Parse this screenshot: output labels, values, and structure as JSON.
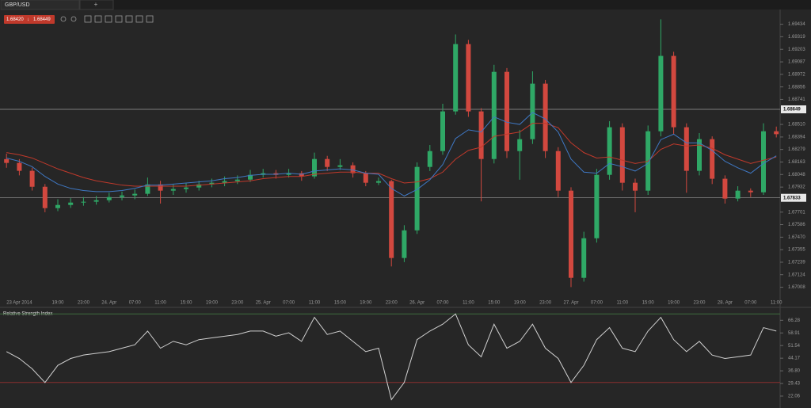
{
  "symbol": "GBP/USD",
  "quote": {
    "bid": "1.68420",
    "ask": "1.68449"
  },
  "chart_data": [
    {
      "type": "candlestick",
      "categories": [
        null,
        "23 Apr 2014",
        null,
        null,
        "19:00",
        null,
        "23:00",
        null,
        "24. Apr",
        null,
        "07:00",
        null,
        "11:00",
        null,
        "15:00",
        null,
        "19:00",
        null,
        "23:00",
        null,
        "25. Apr",
        null,
        "07:00",
        null,
        "11:00",
        null,
        "15:00",
        null,
        "19:00",
        null,
        "23:00",
        null,
        "26. Apr",
        null,
        "07:00",
        null,
        "11:00",
        null,
        "15:00",
        null,
        "19:00",
        null,
        "23:00",
        null,
        "27. Apr",
        null,
        "07:00",
        null,
        "11:00",
        null,
        "15:00",
        null,
        "19:00",
        null,
        "23:00",
        null,
        "28. Apr",
        null,
        "07:00",
        null,
        "11:00"
      ],
      "open": [
        1.6819,
        1.68155,
        1.68082,
        1.67935,
        1.67738,
        1.67767,
        1.67789,
        1.67797,
        1.67811,
        1.6784,
        1.67855,
        1.6787,
        1.67957,
        1.67899,
        1.67914,
        1.67928,
        1.67957,
        1.67972,
        1.67987,
        1.68001,
        1.68045,
        1.6806,
        1.68045,
        1.6806,
        1.68031,
        1.68191,
        1.68118,
        1.68133,
        1.6806,
        1.67972,
        1.67987,
        1.67278,
        1.67533,
        1.68118,
        1.68264,
        1.6863,
        1.69251,
        1.6863,
        1.68191,
        1.68995,
        1.68264,
        1.68374,
        1.68886,
        1.68264,
        1.67899,
        1.67095,
        1.6746,
        1.68045,
        1.68484,
        1.67972,
        1.67899,
        1.68447,
        1.69142,
        1.68484,
        1.68082,
        1.68374,
        1.68009,
        1.67826,
        1.67899,
        1.67884,
        1.68447
      ],
      "high": [
        1.6824,
        1.6819,
        1.6811,
        1.6796,
        1.6782,
        1.6783,
        1.6784,
        1.6785,
        1.6788,
        1.6789,
        1.6791,
        1.6802,
        1.6799,
        1.6796,
        1.6797,
        1.6799,
        1.6801,
        1.6803,
        1.6804,
        1.6809,
        1.681,
        1.6809,
        1.681,
        1.6808,
        1.6825,
        1.6822,
        1.6819,
        1.6816,
        1.6808,
        1.6802,
        1.68,
        1.6758,
        1.6816,
        1.6832,
        1.687,
        1.6934,
        1.6929,
        1.6866,
        1.6906,
        1.6903,
        1.6846,
        1.69,
        1.6892,
        1.683,
        1.6793,
        1.6752,
        1.681,
        1.6854,
        1.6852,
        1.6801,
        1.685,
        1.6948,
        1.6918,
        1.6852,
        1.6843,
        1.684,
        1.6804,
        1.6794,
        1.6792,
        1.6852,
        1.6849
      ],
      "low": [
        1.6811,
        1.6804,
        1.679,
        1.677,
        1.6771,
        1.6774,
        1.6776,
        1.6777,
        1.6779,
        1.6781,
        1.6782,
        1.6785,
        1.6778,
        1.6786,
        1.6788,
        1.679,
        1.6793,
        1.6794,
        1.6796,
        1.6798,
        1.6802,
        1.6801,
        1.6802,
        1.6799,
        1.6801,
        1.6808,
        1.6809,
        1.6802,
        1.6794,
        1.6795,
        1.672,
        1.6724,
        1.675,
        1.6808,
        1.6823,
        1.686,
        1.6858,
        1.678,
        1.6815,
        1.682,
        1.68,
        1.6833,
        1.682,
        1.6784,
        1.6701,
        1.6706,
        1.6742,
        1.68,
        1.679,
        1.677,
        1.6786,
        1.684,
        1.6842,
        1.6788,
        1.6804,
        1.6796,
        1.6778,
        1.678,
        1.6784,
        1.6786,
        1.6839
      ],
      "close": [
        1.68155,
        1.68082,
        1.67935,
        1.67738,
        1.67767,
        1.67789,
        1.67797,
        1.67811,
        1.6784,
        1.67855,
        1.6787,
        1.67957,
        1.67899,
        1.67914,
        1.67928,
        1.67957,
        1.67972,
        1.67987,
        1.68001,
        1.68045,
        1.6806,
        1.68045,
        1.6806,
        1.68031,
        1.68191,
        1.68118,
        1.68133,
        1.6806,
        1.67972,
        1.67987,
        1.67278,
        1.67533,
        1.68118,
        1.68264,
        1.6863,
        1.69251,
        1.6863,
        1.68191,
        1.68995,
        1.68264,
        1.68374,
        1.68886,
        1.68264,
        1.67899,
        1.67095,
        1.6746,
        1.68045,
        1.68484,
        1.67972,
        1.67899,
        1.68447,
        1.69142,
        1.68484,
        1.68082,
        1.68374,
        1.68009,
        1.67826,
        1.67899,
        1.67884,
        1.68447,
        1.6842
      ],
      "up_color": "#2fa866",
      "down_color": "#d2483f",
      "series": [
        {
          "color": "#c0392b",
          "values": [
            1.6825,
            1.6823,
            1.682,
            1.6815,
            1.681,
            1.6806,
            1.6802,
            1.6799,
            1.6797,
            1.6795,
            1.6794,
            1.6794,
            1.6794,
            1.6794,
            1.6794,
            1.6795,
            1.6796,
            1.6797,
            1.6798,
            1.6799,
            1.6801,
            1.6802,
            1.6803,
            1.6803,
            1.6805,
            1.6806,
            1.6807,
            1.6807,
            1.6806,
            1.6806,
            1.6801,
            1.6797,
            1.6798,
            1.6801,
            1.6807,
            1.6819,
            1.6827,
            1.683,
            1.684,
            1.6842,
            1.6844,
            1.6852,
            1.6852,
            1.6848,
            1.6834,
            1.6825,
            1.682,
            1.6821,
            1.6818,
            1.6815,
            1.6817,
            1.6828,
            1.6833,
            1.6831,
            1.6832,
            1.6829,
            1.6823,
            1.6819,
            1.6815,
            1.6818,
            1.6821
          ]
        },
        {
          "color": "#3f78c4",
          "values": [
            1.682,
            1.6817,
            1.6812,
            1.6803,
            1.6796,
            1.6792,
            1.679,
            1.6789,
            1.6789,
            1.679,
            1.6792,
            1.6795,
            1.6795,
            1.6796,
            1.6797,
            1.6798,
            1.6799,
            1.6801,
            1.6802,
            1.6804,
            1.6805,
            1.6805,
            1.6806,
            1.6805,
            1.6808,
            1.6809,
            1.681,
            1.6809,
            1.6806,
            1.6805,
            1.6792,
            1.6785,
            1.6791,
            1.68,
            1.6814,
            1.6838,
            1.6846,
            1.6844,
            1.6858,
            1.6853,
            1.6851,
            1.6862,
            1.6856,
            1.6844,
            1.6819,
            1.6807,
            1.6806,
            1.6815,
            1.6812,
            1.6808,
            1.6815,
            1.6837,
            1.6842,
            1.6834,
            1.6834,
            1.6827,
            1.6817,
            1.6811,
            1.6806,
            1.6815,
            1.6822
          ]
        }
      ],
      "hlines": [
        1.68649,
        1.67833
      ],
      "ylim": [
        1.6691,
        1.6957
      ],
      "yticks": [
        1.69434,
        1.69319,
        1.69203,
        1.69087,
        1.68972,
        1.68856,
        1.68741,
        {
          "value": 1.6851,
          "label": "1.68510"
        },
        1.68394,
        1.68279,
        1.68163,
        1.68048,
        1.67932,
        1.67701,
        1.67586,
        {
          "value": 1.6747,
          "label": "1.67470"
        },
        1.67355,
        1.67239,
        1.67124,
        1.67008
      ]
    },
    {
      "type": "line",
      "title": "Relative Strength Index",
      "color": "#d0d0d0",
      "values": [
        48,
        44,
        38,
        30,
        40,
        44,
        46,
        47,
        48,
        50,
        52,
        60,
        50,
        54,
        52,
        55,
        56,
        57,
        58,
        60,
        60,
        57,
        59,
        54,
        68,
        58,
        60,
        54,
        48,
        50,
        20,
        30,
        55,
        60,
        64,
        70,
        52,
        45,
        64,
        50,
        54,
        64,
        50,
        44,
        30,
        40,
        55,
        62,
        50,
        48,
        60,
        68,
        55,
        48,
        54,
        46,
        44,
        45,
        46,
        62,
        60
      ],
      "levels": [
        {
          "value": 70,
          "color": "#3d6b3d"
        },
        {
          "value": 30,
          "color": "#8c2f2f"
        }
      ],
      "ylim": [
        16.5,
        71.5
      ],
      "yticks": [
        66.28,
        58.91,
        51.54,
        44.17,
        {
          "value": 36.8,
          "label": "36.80"
        },
        29.43,
        22.06
      ]
    }
  ]
}
